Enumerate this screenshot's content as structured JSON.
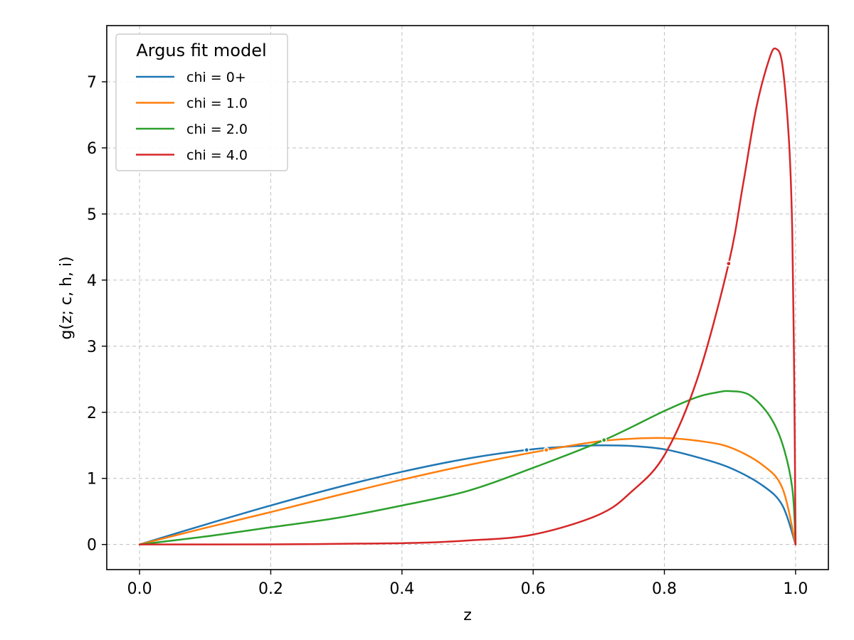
{
  "chart_data": {
    "type": "line",
    "title": "",
    "xlabel": "z",
    "ylabel": "g(z; c, h, i)",
    "xlim": [
      -0.05,
      1.05
    ],
    "ylim": [
      -0.38,
      7.85
    ],
    "x_ticks": [
      "0.0",
      "0.2",
      "0.4",
      "0.6",
      "0.8",
      "1.0"
    ],
    "x_tick_values": [
      0.0,
      0.2,
      0.4,
      0.6,
      0.8,
      1.0
    ],
    "y_ticks": [
      "0",
      "1",
      "2",
      "3",
      "4",
      "5",
      "6",
      "7"
    ],
    "y_tick_values": [
      0,
      1,
      2,
      3,
      4,
      5,
      6,
      7
    ],
    "grid": true,
    "legend": {
      "title": "Argus fit model",
      "placement": "top-left"
    },
    "series": [
      {
        "name": "chi = 0+",
        "color": "#1f77b4",
        "x": [
          0.0,
          0.1,
          0.2,
          0.3,
          0.4,
          0.5,
          0.59,
          0.65,
          0.7,
          0.75,
          0.8,
          0.85,
          0.9,
          0.95,
          0.98,
          1.0
        ],
        "y": [
          0.0,
          0.3,
          0.59,
          0.86,
          1.1,
          1.3,
          1.43,
          1.48,
          1.5,
          1.49,
          1.44,
          1.32,
          1.16,
          0.89,
          0.59,
          0.0
        ],
        "marker_x": 0.59,
        "marker_y": 1.43
      },
      {
        "name": "chi = 1.0",
        "color": "#ff7f0e",
        "x": [
          0.0,
          0.1,
          0.2,
          0.3,
          0.4,
          0.5,
          0.62,
          0.7,
          0.75,
          0.8,
          0.85,
          0.9,
          0.95,
          0.98,
          1.0
        ],
        "y": [
          0.0,
          0.25,
          0.49,
          0.74,
          0.98,
          1.2,
          1.43,
          1.56,
          1.6,
          1.61,
          1.57,
          1.47,
          1.2,
          0.85,
          0.0
        ],
        "marker_x": 0.62,
        "marker_y": 1.43
      },
      {
        "name": "chi = 2.0",
        "color": "#2ca02c",
        "x": [
          0.0,
          0.1,
          0.2,
          0.3,
          0.4,
          0.5,
          0.6,
          0.708,
          0.8,
          0.85,
          0.88,
          0.9,
          0.93,
          0.96,
          0.98,
          0.995,
          1.0
        ],
        "y": [
          0.0,
          0.12,
          0.26,
          0.4,
          0.59,
          0.81,
          1.16,
          1.58,
          2.02,
          2.23,
          2.3,
          2.32,
          2.26,
          1.95,
          1.52,
          0.85,
          0.0
        ],
        "marker_x": 0.708,
        "marker_y": 1.58
      },
      {
        "name": "chi = 4.0",
        "color": "#d62728",
        "x": [
          0.0,
          0.2,
          0.4,
          0.5,
          0.6,
          0.7,
          0.75,
          0.8,
          0.85,
          0.898,
          0.92,
          0.94,
          0.96,
          0.97,
          0.98,
          0.99,
          0.995,
          0.998,
          1.0
        ],
        "y": [
          0.0,
          0.002,
          0.02,
          0.06,
          0.15,
          0.45,
          0.8,
          1.35,
          2.5,
          4.25,
          5.45,
          6.6,
          7.35,
          7.5,
          7.25,
          6.1,
          4.7,
          2.4,
          0.0
        ],
        "marker_x": 0.898,
        "marker_y": 4.25
      }
    ]
  }
}
